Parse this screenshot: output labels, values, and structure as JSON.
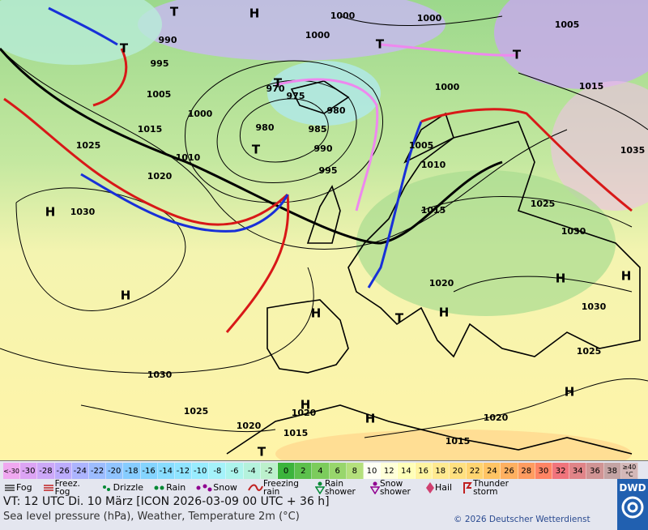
{
  "map": {
    "labels": [
      "H",
      "H",
      "H",
      "H",
      "H",
      "H",
      "H",
      "H",
      "H",
      "H",
      "T",
      "T",
      "T",
      "T",
      "T",
      "T",
      "T",
      "T",
      "1000",
      "1000",
      "1000",
      "1000",
      "1000",
      "1005",
      "1005",
      "1005",
      "1010",
      "1010",
      "1015",
      "1015",
      "1015",
      "1015",
      "1015",
      "1020",
      "1020",
      "1020",
      "1020",
      "1020",
      "1025",
      "1025",
      "1025",
      "1025",
      "1030",
      "1030",
      "1030",
      "1030",
      "1035",
      "990",
      "990",
      "995",
      "995",
      "980",
      "980",
      "985",
      "970",
      "975"
    ]
  },
  "legend": {
    "temperature_labels": [
      "<-30",
      -30,
      -28,
      -26,
      -24,
      -22,
      -20,
      -18,
      -16,
      -14,
      -12,
      -10,
      -8,
      -6,
      -4,
      -2,
      0,
      2,
      4,
      6,
      8,
      10,
      12,
      14,
      16,
      18,
      20,
      22,
      24,
      26,
      28,
      30,
      32,
      34,
      36,
      38,
      "≥40 °C"
    ],
    "temperature_colors": [
      "#f0a8f0",
      "#dca4f4",
      "#cca8f8",
      "#bcacfc",
      "#acb4ff",
      "#9cbcff",
      "#90c4ff",
      "#86ccff",
      "#84d4ff",
      "#88dcff",
      "#90e4ff",
      "#98ecff",
      "#a4f2fa",
      "#acf4ec",
      "#b4f2dc",
      "#bcf0cc",
      "#3cb43c",
      "#5cc04c",
      "#7ccc5c",
      "#98d66c",
      "#b4e07c",
      "#fffff4",
      "#ffffd8",
      "#ffffb8",
      "#fff4a0",
      "#ffea90",
      "#ffe080",
      "#ffd470",
      "#ffc464",
      "#ffb060",
      "#ff9c60",
      "#ff8464",
      "#f0747c",
      "#e08488",
      "#d09494",
      "#c4a4a4",
      "#d4b8b8"
    ],
    "weather": [
      "Fog",
      "Freez. Fog",
      "Drizzle",
      "Rain",
      "Snow",
      "Freezing rain",
      "Rain shower",
      "Snow shower",
      "Hail",
      "Thunder storm"
    ]
  },
  "footer": {
    "valid_time": "VT: 12 UTC Di.  10 März [ICON 2026-03-09  00 UTC + 36 h]",
    "description": "Sea level pressure (hPa), Weather, Temperature 2m (°C)",
    "copyright": "© 2026 Deutscher Wetterdienst",
    "logo": "DWD"
  }
}
